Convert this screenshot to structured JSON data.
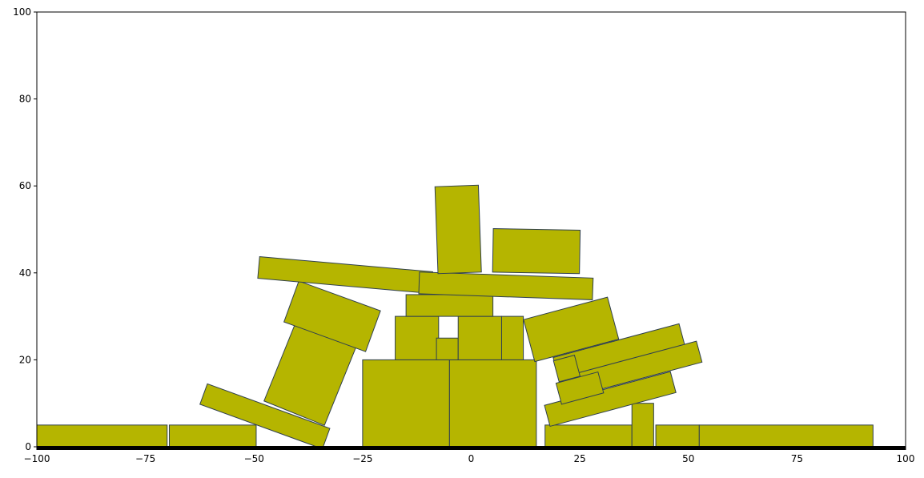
{
  "chart_data": {
    "type": "scatter",
    "title": "",
    "xlabel": "",
    "ylabel": "",
    "xlim": [
      -100,
      100
    ],
    "ylim": [
      0,
      100
    ],
    "grid": false,
    "x_ticks": [
      -100,
      -75,
      -50,
      -25,
      0,
      25,
      50,
      75,
      100
    ],
    "x_tick_labels": [
      "−100",
      "−75",
      "−50",
      "−25",
      "0",
      "25",
      "50",
      "75",
      "100"
    ],
    "y_ticks": [
      0,
      20,
      40,
      60,
      80,
      100
    ],
    "y_tick_labels": [
      "0",
      "20",
      "40",
      "60",
      "80",
      "100"
    ],
    "block_color": "#b5b500",
    "edge_color": "#2f3f4f",
    "ground_color": "#000000",
    "blocks": [
      {
        "cx": -85,
        "cy": 2.5,
        "w": 30,
        "h": 5,
        "angle": 0
      },
      {
        "cx": -59.5,
        "cy": 2.5,
        "w": 20,
        "h": 5,
        "angle": 0
      },
      {
        "cx": -15,
        "cy": 10,
        "w": 20,
        "h": 20,
        "angle": 0
      },
      {
        "cx": 5,
        "cy": 10,
        "w": 20,
        "h": 20,
        "angle": 0
      },
      {
        "cx": 27,
        "cy": 2.5,
        "w": 20,
        "h": 5,
        "angle": 0
      },
      {
        "cx": 39.5,
        "cy": 5,
        "w": 5,
        "h": 10,
        "angle": 0
      },
      {
        "cx": 47.5,
        "cy": 2.5,
        "w": 10,
        "h": 5,
        "angle": 0
      },
      {
        "cx": 72.5,
        "cy": 2.5,
        "w": 40,
        "h": 5,
        "angle": 0
      },
      {
        "cx": -47.5,
        "cy": 7,
        "w": 30,
        "h": 5,
        "angle": -20
      },
      {
        "cx": -37,
        "cy": 17,
        "w": 15,
        "h": 20,
        "angle": -22
      },
      {
        "cx": -32,
        "cy": 30,
        "w": 20,
        "h": 10,
        "angle": -20
      },
      {
        "cx": -12.5,
        "cy": 25,
        "w": 10,
        "h": 10,
        "angle": 0
      },
      {
        "cx": -5.5,
        "cy": 22.5,
        "w": 5,
        "h": 5,
        "angle": 0
      },
      {
        "cx": 2,
        "cy": 25,
        "w": 10,
        "h": 10,
        "angle": 0
      },
      {
        "cx": 9.5,
        "cy": 25,
        "w": 5,
        "h": 10,
        "angle": 0
      },
      {
        "cx": -5,
        "cy": 32.5,
        "w": 20,
        "h": 5,
        "angle": 0
      },
      {
        "cx": -29,
        "cy": 39.5,
        "w": 40,
        "h": 5,
        "angle": -5
      },
      {
        "cx": 8,
        "cy": 37,
        "w": 40,
        "h": 5,
        "angle": -2
      },
      {
        "cx": -3,
        "cy": 50,
        "w": 10,
        "h": 20,
        "angle": 2
      },
      {
        "cx": 15,
        "cy": 45,
        "w": 20,
        "h": 10,
        "angle": -1
      },
      {
        "cx": 23,
        "cy": 27,
        "w": 20,
        "h": 10,
        "angle": 15
      },
      {
        "cx": 34,
        "cy": 22,
        "w": 30,
        "h": 5,
        "angle": 15
      },
      {
        "cx": 38,
        "cy": 18,
        "w": 30,
        "h": 5,
        "angle": 15
      },
      {
        "cx": 32,
        "cy": 11,
        "w": 30,
        "h": 5,
        "angle": 15
      },
      {
        "cx": 22,
        "cy": 18,
        "w": 5,
        "h": 5,
        "angle": 15
      },
      {
        "cx": 25,
        "cy": 13.5,
        "w": 10,
        "h": 5,
        "angle": 15
      }
    ]
  }
}
